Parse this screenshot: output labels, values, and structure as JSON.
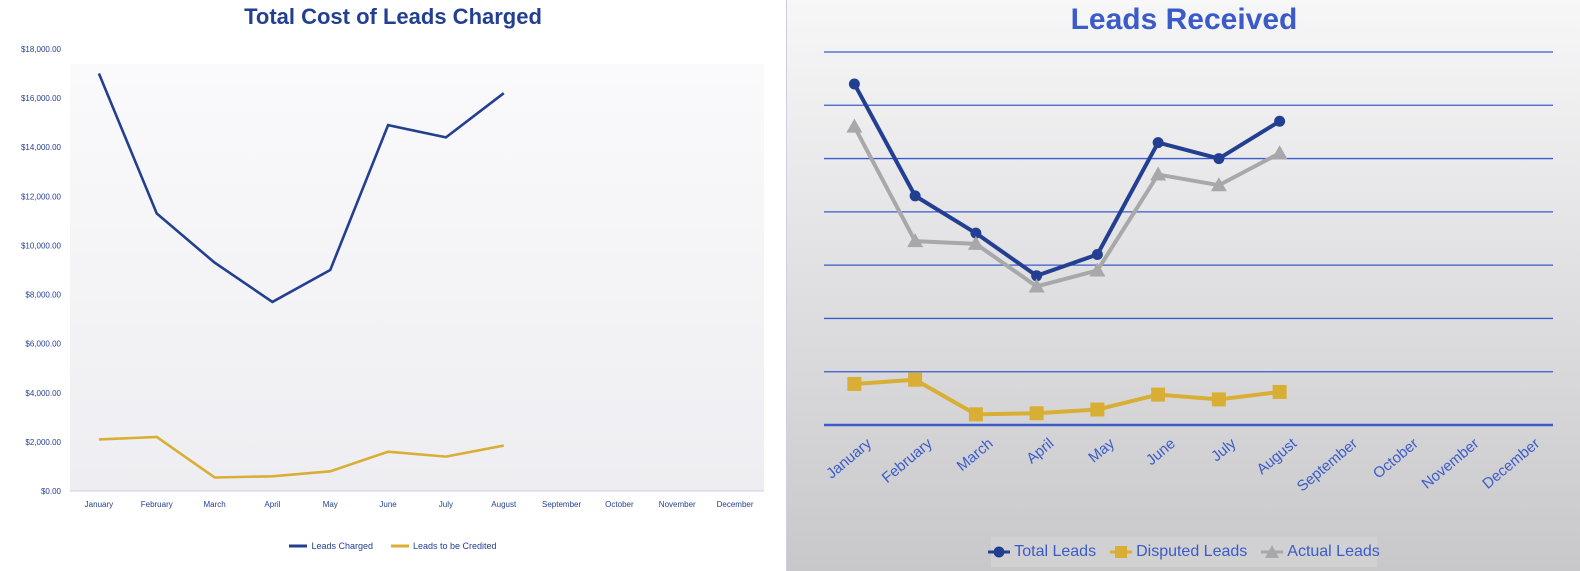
{
  "charts": [
    {
      "type": "line",
      "title": "Total Cost of Leads Charged",
      "xlabel": "",
      "ylabel": "",
      "ylim": [
        0,
        18000
      ],
      "grid": false,
      "legend_position": "bottom",
      "categories": [
        "January",
        "February",
        "March",
        "April",
        "May",
        "June",
        "July",
        "August",
        "September",
        "October",
        "November",
        "December"
      ],
      "y_tick_labels": [
        "$0.00",
        "$2,000.00",
        "$4,000.00",
        "$6,000.00",
        "$8,000.00",
        "$10,000.00",
        "$12,000.00",
        "$14,000.00",
        "$16,000.00",
        "$18,000.00"
      ],
      "series": [
        {
          "name": "Leads Charged",
          "color": "#233f91",
          "values": [
            17000,
            11300,
            9300,
            7700,
            9000,
            14900,
            14400,
            16200,
            null,
            null,
            null,
            null
          ]
        },
        {
          "name": "Leads to be Credited",
          "color": "#d9ae34",
          "values": [
            2100,
            2200,
            550,
            600,
            800,
            1600,
            1400,
            1850,
            null,
            null,
            null,
            null
          ]
        }
      ]
    },
    {
      "type": "line",
      "title": "Leads Received",
      "xlabel": "",
      "ylabel": "",
      "ylim": [
        0,
        7
      ],
      "grid": true,
      "legend_position": "bottom",
      "categories": [
        "January",
        "February",
        "March",
        "April",
        "May",
        "June",
        "July",
        "August",
        "September",
        "October",
        "November",
        "December"
      ],
      "series": [
        {
          "name": "Total Leads",
          "color": "#233f91",
          "marker": "circle",
          "values": [
            6.4,
            4.3,
            3.6,
            2.8,
            3.2,
            5.3,
            5.0,
            5.7,
            null,
            null,
            null,
            null
          ]
        },
        {
          "name": "Disputed Leads",
          "color": "#d9ae34",
          "marker": "square",
          "values": [
            0.77,
            0.85,
            0.2,
            0.22,
            0.29,
            0.57,
            0.48,
            0.62,
            null,
            null,
            null,
            null
          ]
        },
        {
          "name": "Actual Leads",
          "color": "#a8a8aa",
          "marker": "triangle",
          "values": [
            5.6,
            3.45,
            3.4,
            2.6,
            2.9,
            4.7,
            4.5,
            5.1,
            null,
            null,
            null,
            null
          ]
        }
      ]
    }
  ]
}
